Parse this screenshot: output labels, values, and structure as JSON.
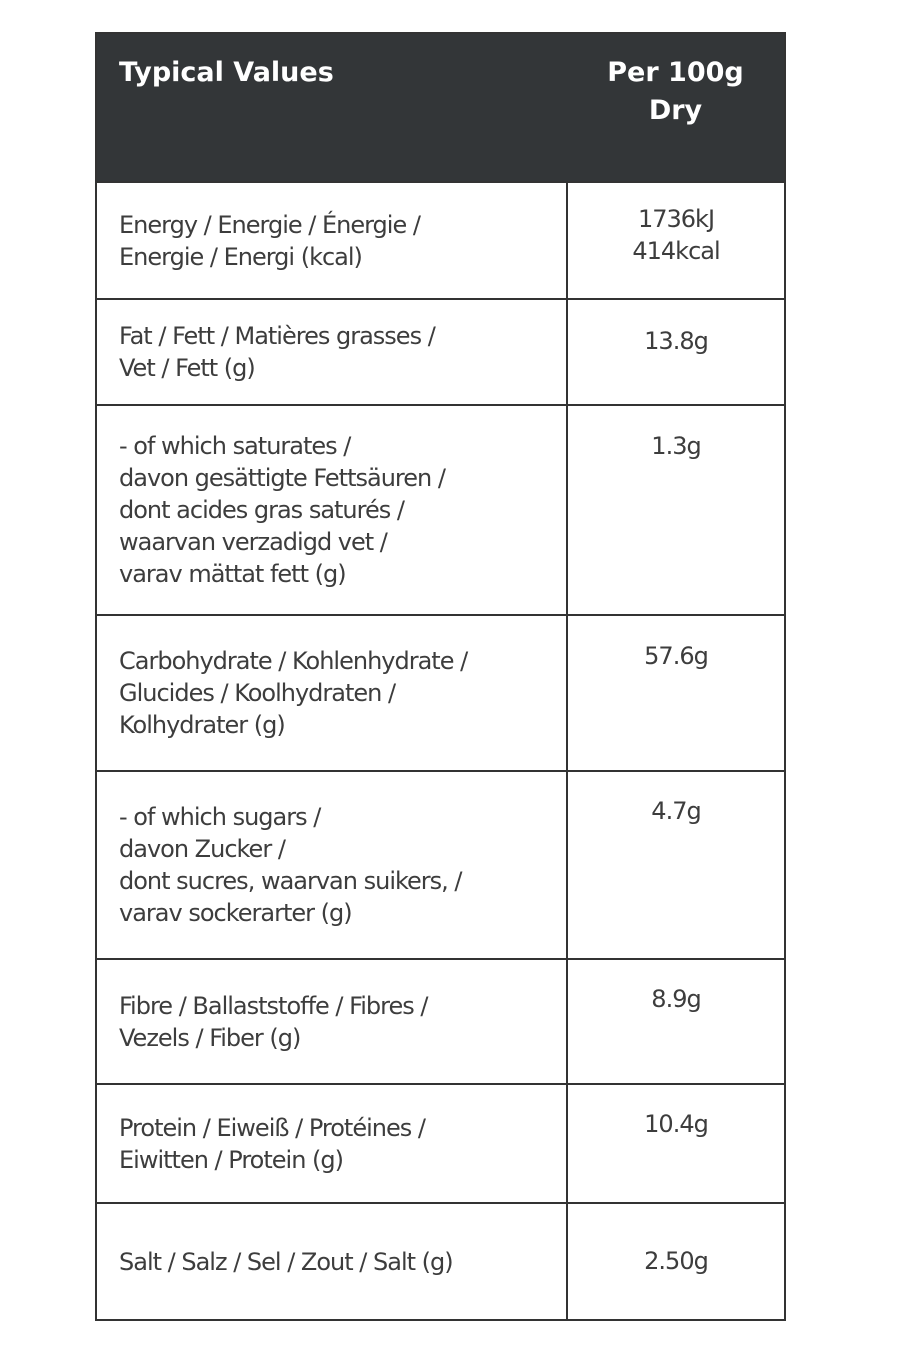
{
  "header": {
    "label": "Typical Values",
    "value": "Per 100g\nDry"
  },
  "header_bg": "#333638",
  "rows": [
    {
      "label": "Energy / Energie / Énergie /\nEnergie / Energi (kcal)",
      "value": "1736kJ\n414kcal"
    },
    {
      "label": "Fat / Fett / Matières grasses /\nVet / Fett (g)",
      "value": "13.8g"
    },
    {
      "label": "- of which saturates /\ndavon gesättigte Fettsäuren /\ndont acides gras saturés /\nwaarvan verzadigd vet /\nvarav mättat fett (g)",
      "value": "1.3g"
    },
    {
      "label": "Carbohydrate / Kohlenhydrate /\nGlucides / Koolhydraten /\nKolhydrater (g)",
      "value": "57.6g"
    },
    {
      "label": "- of which sugars /\ndavon Zucker /\ndont sucres,  waarvan suikers, /\nvarav sockerarter (g)",
      "value": "4.7g"
    },
    {
      "label": "Fibre / Ballaststoffe / Fibres /\nVezels / Fiber (g)",
      "value": "8.9g"
    },
    {
      "label": "Protein / Eiweiß / Protéines /\nEiwitten / Protein (g)",
      "value": "10.4g"
    },
    {
      "label": "Salt / Salz / Sel / Zout / Salt (g)",
      "value": "2.50g"
    }
  ]
}
